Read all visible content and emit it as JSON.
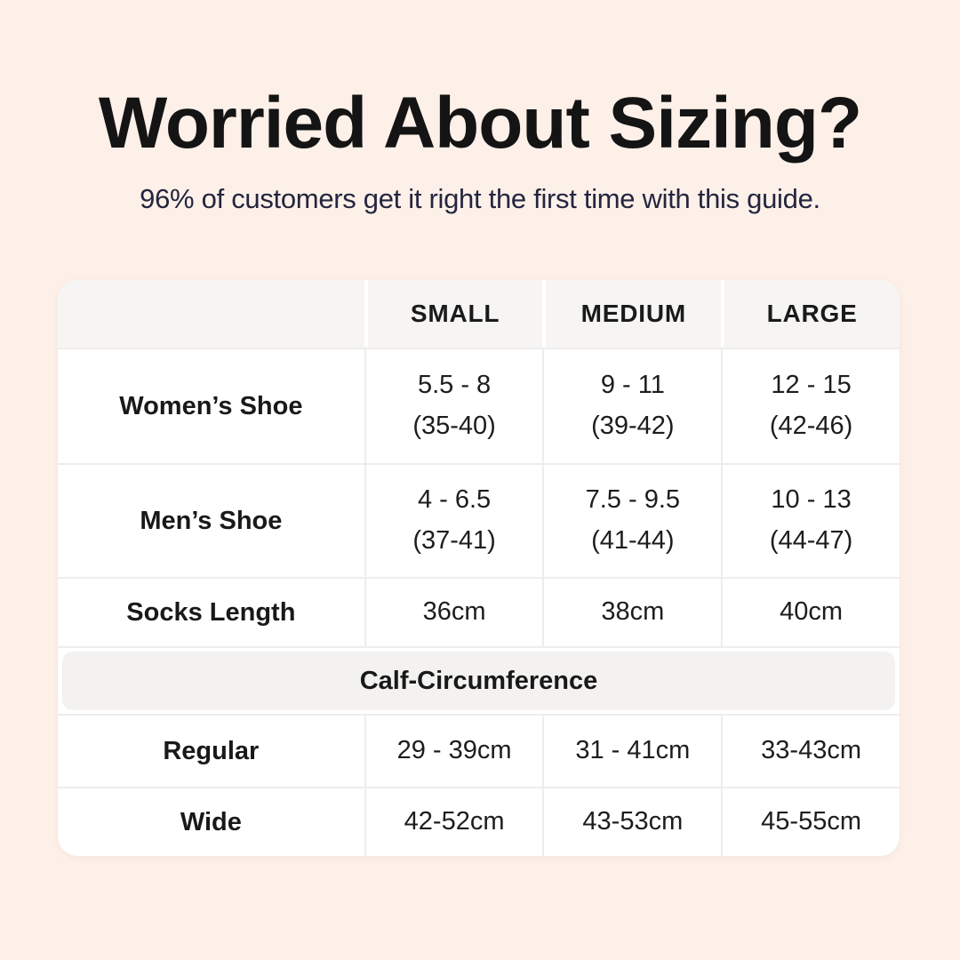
{
  "header": {
    "title": "Worried About Sizing?",
    "subtitle": "96% of customers get it right the first time with this guide."
  },
  "colors": {
    "background": "#fcf0e8",
    "table_background": "#ffffff",
    "header_row_background": "#f6f5f3",
    "section_band_background": "#f3f2f0",
    "divider": "#efedeb",
    "title_text": "#141414",
    "subtitle_text": "#25253f",
    "table_text": "#1d1d1d"
  },
  "table": {
    "columns": [
      "",
      "SMALL",
      "MEDIUM",
      "LARGE"
    ],
    "rows": [
      {
        "label": "Women’s Shoe",
        "cells": [
          {
            "line1": "5.5 - 8",
            "line2": "(35-40)"
          },
          {
            "line1": "9 - 11",
            "line2": "(39-42)"
          },
          {
            "line1": "12 - 15",
            "line2": "(42-46)"
          }
        ]
      },
      {
        "label": "Men’s Shoe",
        "cells": [
          {
            "line1": "4 - 6.5",
            "line2": "(37-41)"
          },
          {
            "line1": "7.5 - 9.5",
            "line2": "(41-44)"
          },
          {
            "line1": "10 - 13",
            "line2": "(44-47)"
          }
        ]
      },
      {
        "label": "Socks Length",
        "cells": [
          {
            "line1": "36cm"
          },
          {
            "line1": "38cm"
          },
          {
            "line1": "40cm"
          }
        ]
      }
    ],
    "section_header": "Calf-Circumference",
    "section_rows": [
      {
        "label": "Regular",
        "cells": [
          "29 - 39cm",
          "31 - 41cm",
          "33-43cm"
        ]
      },
      {
        "label": "Wide",
        "cells": [
          "42-52cm",
          "43-53cm",
          "45-55cm"
        ]
      }
    ]
  },
  "chart_data": {
    "type": "table",
    "title": "Worried About Sizing?",
    "subtitle": "96% of customers get it right the first time with this guide.",
    "columns": [
      "",
      "SMALL",
      "MEDIUM",
      "LARGE"
    ],
    "rows": [
      [
        "Women’s Shoe",
        "5.5 - 8 (35-40)",
        "9 - 11 (39-42)",
        "12 - 15 (42-46)"
      ],
      [
        "Men’s Shoe",
        "4 - 6.5 (37-41)",
        "7.5 - 9.5 (41-44)",
        "10 - 13 (44-47)"
      ],
      [
        "Socks Length",
        "36cm",
        "38cm",
        "40cm"
      ],
      [
        "Calf-Circumference",
        "",
        "",
        ""
      ],
      [
        "Regular",
        "29 - 39cm",
        "31 - 41cm",
        "33-43cm"
      ],
      [
        "Wide",
        "42-52cm",
        "43-53cm",
        "45-55cm"
      ]
    ],
    "layout_hints": {
      "section_header_row_index": 3,
      "section_header_spans_all_columns": true,
      "grid": "light internal dividers, rounded outer corners"
    }
  }
}
